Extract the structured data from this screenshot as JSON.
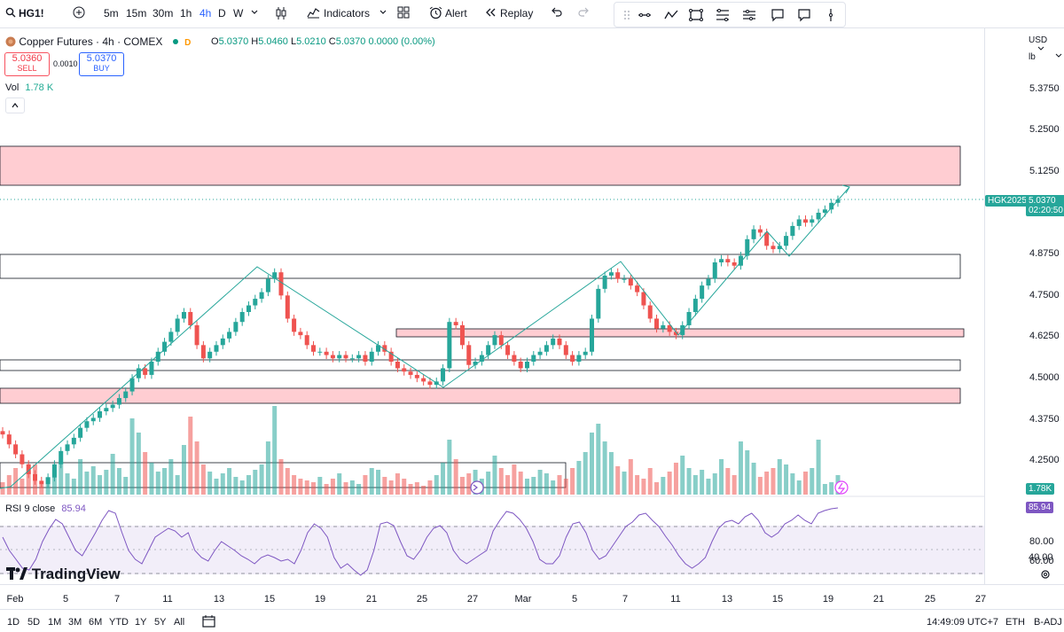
{
  "toolbar": {
    "symbol": "HG1!",
    "intervals": [
      "5m",
      "15m",
      "30m",
      "1h",
      "4h",
      "D",
      "W"
    ],
    "active_interval": "4h",
    "indicators_label": "Indicators",
    "alert_label": "Alert",
    "replay_label": "Replay"
  },
  "legend": {
    "title": "Copper Futures · 4h · COMEX",
    "flag": "D",
    "ohlc": {
      "o_key": "O",
      "o": "5.0370",
      "h_key": "H",
      "h": "5.0460",
      "l_key": "L",
      "l": "5.0210",
      "c_key": "C",
      "c": "5.0370",
      "change": "0.0000 (0.00%)"
    },
    "sell_price": "5.0360",
    "sell_label": "SELL",
    "spread": "0.0010",
    "buy_price": "5.0370",
    "buy_label": "BUY",
    "vol_label": "Vol",
    "vol_value": "1.78 K"
  },
  "price_axis": {
    "currency": "USD",
    "unit": "lb",
    "ticks": [
      "5.3750",
      "5.2500",
      "5.1250",
      "4.8750",
      "4.7500",
      "4.6250",
      "4.5000",
      "4.3750",
      "4.2500"
    ],
    "current_symbol": "HGK2025",
    "current_price": "5.0370",
    "countdown": "02:20:50",
    "volume_tag": "1.78K"
  },
  "rsi": {
    "label": "RSI 9 close",
    "value": "85.94",
    "ticks": [
      "80.00",
      "60.00",
      "40.00",
      "20.00"
    ]
  },
  "date_axis": {
    "labels": [
      "Feb",
      "5",
      "7",
      "11",
      "13",
      "15",
      "19",
      "21",
      "25",
      "27",
      "Mar",
      "5",
      "7",
      "11",
      "13",
      "15",
      "19",
      "21",
      "25",
      "27"
    ]
  },
  "bottom": {
    "ranges": [
      "1D",
      "5D",
      "1M",
      "3M",
      "6M",
      "YTD",
      "1Y",
      "5Y",
      "All"
    ],
    "clock": "14:49:09 UTC+7",
    "session": "ETH",
    "adj": "B-ADJ"
  },
  "brand": {
    "name": "TradingView"
  },
  "colors": {
    "up": "#26a69a",
    "down": "#ef5350",
    "accent": "#2962ff",
    "zone_fill": "#ffcdd2",
    "zone_border": "#f23645"
  },
  "chart_data": {
    "type": "candlestick",
    "title": "Copper Futures · 4h · COMEX",
    "y_range": [
      4.17,
      5.43
    ],
    "close_series_approx": [
      4.33,
      4.3,
      4.27,
      4.24,
      4.21,
      4.19,
      4.18,
      4.2,
      4.24,
      4.28,
      4.3,
      4.32,
      4.35,
      4.37,
      4.38,
      4.4,
      4.41,
      4.42,
      4.44,
      4.46,
      4.5,
      4.53,
      4.51,
      4.55,
      4.58,
      4.61,
      4.64,
      4.68,
      4.7,
      4.66,
      4.6,
      4.56,
      4.58,
      4.6,
      4.62,
      4.64,
      4.67,
      4.7,
      4.72,
      4.74,
      4.76,
      4.8,
      4.82,
      4.75,
      4.68,
      4.64,
      4.63,
      4.6,
      4.58,
      4.58,
      4.57,
      4.56,
      4.57,
      4.56,
      4.56,
      4.57,
      4.55,
      4.58,
      4.6,
      4.58,
      4.55,
      4.53,
      4.52,
      4.51,
      4.5,
      4.49,
      4.48,
      4.49,
      4.53,
      4.67,
      4.66,
      4.6,
      4.54,
      4.55,
      4.57,
      4.6,
      4.63,
      4.6,
      4.57,
      4.55,
      4.53,
      4.55,
      4.57,
      4.58,
      4.6,
      4.62,
      4.6,
      4.57,
      4.55,
      4.57,
      4.58,
      4.68,
      4.77,
      4.81,
      4.82,
      4.8,
      4.8,
      4.78,
      4.76,
      4.72,
      4.68,
      4.65,
      4.66,
      4.64,
      4.63,
      4.66,
      4.7,
      4.74,
      4.78,
      4.8,
      4.85,
      4.86,
      4.85,
      4.84,
      4.87,
      4.92,
      4.95,
      4.94,
      4.9,
      4.89,
      4.9,
      4.93,
      4.96,
      4.98,
      4.97,
      4.98,
      5.0,
      5.01,
      5.03,
      5.04
    ],
    "zones": [
      {
        "low": 5.1,
        "high": 5.19,
        "style": "filled"
      },
      {
        "low": 4.8,
        "high": 4.86,
        "style": "outline"
      },
      {
        "low": 4.62,
        "high": 4.63,
        "style": "filled"
      },
      {
        "low": 4.52,
        "high": 4.54,
        "style": "outline"
      },
      {
        "low": 4.45,
        "high": 4.47,
        "style": "filled"
      }
    ],
    "volume_last": "1.78K",
    "rsi_last": 85.94
  }
}
